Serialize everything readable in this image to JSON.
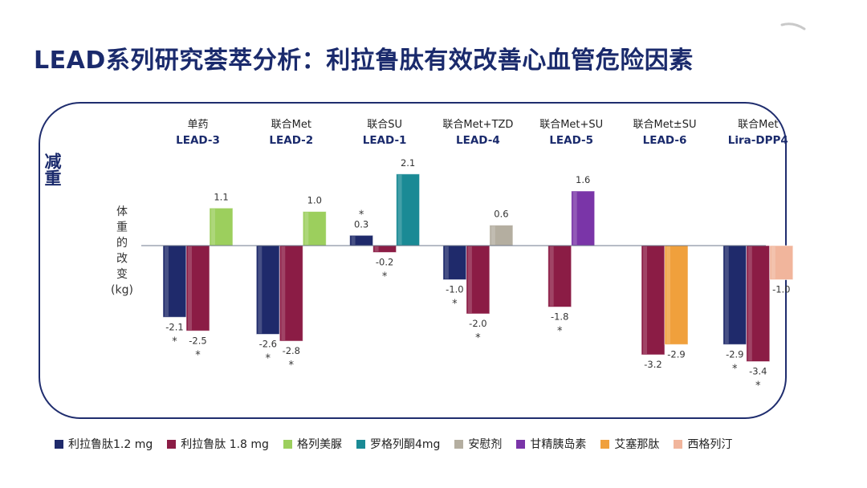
{
  "slide": {
    "title": "LEAD系列研究荟萃分析：利拉鲁肽有效改善心血管危险因素",
    "side_label": "减重"
  },
  "chart_data": {
    "type": "bar",
    "ylabel": "体重的改变(kg)",
    "ylim": [
      -4,
      2.5
    ],
    "grid": false,
    "legend_position": "bottom",
    "series_styles": {
      "利拉鲁肽1.2 mg": "#1f2a6b",
      "利拉鲁肽 1.8 mg": "#8b1c45",
      "格列美脲": "#9ccf5d",
      "罗格列酮4mg": "#1a8a95",
      "安慰剂": "#b4aea0",
      "甘精胰岛素": "#7a35a8",
      "艾塞那肽": "#f0a03c",
      "西格列汀": "#f1b59c"
    },
    "groups": [
      {
        "subtitle": "单药",
        "name": "LEAD-3",
        "bars": [
          {
            "series": "利拉鲁肽1.2 mg",
            "value": -2.1,
            "label": "-2.1",
            "star": true
          },
          {
            "series": "利拉鲁肽 1.8 mg",
            "value": -2.5,
            "label": "-2.5",
            "star": true
          },
          {
            "series": "格列美脲",
            "value": 1.1,
            "label": "1.1",
            "star": false
          }
        ]
      },
      {
        "subtitle": "联合Met",
        "name": "LEAD-2",
        "bars": [
          {
            "series": "利拉鲁肽1.2 mg",
            "value": -2.6,
            "label": "-2.6",
            "star": true
          },
          {
            "series": "利拉鲁肽 1.8 mg",
            "value": -2.8,
            "label": "-2.8",
            "star": true
          },
          {
            "series": "格列美脲",
            "value": 1.0,
            "label": "1.0",
            "star": false
          }
        ]
      },
      {
        "subtitle": "联合SU",
        "name": "LEAD-1",
        "bars": [
          {
            "series": "利拉鲁肽1.2 mg",
            "value": 0.3,
            "label": "0.3",
            "star": true
          },
          {
            "series": "利拉鲁肽 1.8 mg",
            "value": -0.2,
            "label": "-0.2",
            "star": true
          },
          {
            "series": "罗格列酮4mg",
            "value": 2.1,
            "label": "2.1",
            "star": false
          }
        ]
      },
      {
        "subtitle": "联合Met+TZD",
        "name": "LEAD-4",
        "bars": [
          {
            "series": "利拉鲁肽1.2 mg",
            "value": -1.0,
            "label": "-1.0",
            "star": true
          },
          {
            "series": "利拉鲁肽 1.8 mg",
            "value": -2.0,
            "label": "-2.0",
            "star": true
          },
          {
            "series": "安慰剂",
            "value": 0.6,
            "label": "0.6",
            "star": false
          }
        ]
      },
      {
        "subtitle": "联合Met+SU",
        "name": "LEAD-5",
        "bars": [
          {
            "series": "利拉鲁肽 1.8 mg",
            "value": -1.8,
            "label": "-1.8",
            "star": true
          },
          {
            "series": "甘精胰岛素",
            "value": 1.6,
            "label": "1.6",
            "star": false
          }
        ]
      },
      {
        "subtitle": "联合Met±SU",
        "name": "LEAD-6",
        "bars": [
          {
            "series": "利拉鲁肽 1.8 mg",
            "value": -3.2,
            "label": "-3.2",
            "star": false
          },
          {
            "series": "艾塞那肽",
            "value": -2.9,
            "label": "-2.9",
            "star": false
          }
        ]
      },
      {
        "subtitle": "联合Met",
        "name": "Lira-DPP4",
        "bars": [
          {
            "series": "利拉鲁肽1.2 mg",
            "value": -2.9,
            "label": "-2.9",
            "star": true
          },
          {
            "series": "利拉鲁肽 1.8 mg",
            "value": -3.4,
            "label": "-3.4",
            "star": true
          },
          {
            "series": "西格列汀",
            "value": -1.0,
            "label": "-1.0",
            "star": false
          }
        ]
      }
    ],
    "legend": [
      {
        "label": "利拉鲁肽1.2 mg",
        "color": "#1f2a6b"
      },
      {
        "label": "利拉鲁肽 1.8 mg",
        "color": "#8b1c45"
      },
      {
        "label": "格列美脲",
        "color": "#9ccf5d"
      },
      {
        "label": "罗格列酮4mg",
        "color": "#1a8a95"
      },
      {
        "label": "安慰剂",
        "color": "#b4aea0"
      },
      {
        "label": "甘精胰岛素",
        "color": "#7a35a8"
      },
      {
        "label": "艾塞那肽",
        "color": "#f0a03c"
      },
      {
        "label": "西格列汀",
        "color": "#f1b59c"
      }
    ]
  }
}
